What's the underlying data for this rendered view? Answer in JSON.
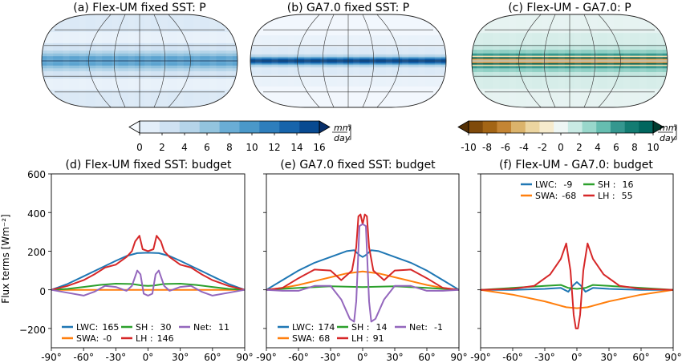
{
  "maps": [
    {
      "title": "(a) Flex-UM fixed SST: P",
      "kind": "flex"
    },
    {
      "title": "(b) GA7.0 fixed SST: P",
      "kind": "ga7"
    },
    {
      "title": "(c) Flex-UM - GA7.0: P",
      "kind": "diff"
    }
  ],
  "colorbars": [
    {
      "ticks": [
        "0",
        "2",
        "4",
        "6",
        "8",
        "10",
        "12",
        "14",
        "16"
      ],
      "unit_top": "mm",
      "unit_bottom": "day",
      "colors": [
        "#f7fbff",
        "#e3eef9",
        "#cfe1f2",
        "#b5d4e9",
        "#93c4de",
        "#6aadd5",
        "#4a98c9",
        "#2e7ebc",
        "#1764ab",
        "#084a91",
        "#08306b"
      ]
    },
    {
      "ticks": [
        "-10",
        "-8",
        "-6",
        "-4",
        "-2",
        "0",
        "2",
        "4",
        "6",
        "8",
        "10"
      ],
      "unit_top": "mm",
      "unit_bottom": "day",
      "colors": [
        "#543005",
        "#7f4a0b",
        "#a36515",
        "#c48534",
        "#dbb36b",
        "#ecd5a0",
        "#f6ebcd",
        "#eef6f4",
        "#c9eae4",
        "#99d7cb",
        "#66bdb0",
        "#35978f",
        "#137c72",
        "#01665e",
        "#003c30"
      ]
    }
  ],
  "ylabel": "Flux terms [Wm⁻²]",
  "panel_titles": [
    "(d) Flex-UM fixed SST: budget",
    "(e) GA7.0 fixed SST: budget",
    "(f) Flex-UM - GA7.0: budget"
  ],
  "x_ticks": [
    "-90°",
    "-60°",
    "-30°",
    "0°",
    "30°",
    "60°",
    "90°"
  ],
  "y_ticks": [
    "600",
    "400",
    "200",
    "0",
    "−200"
  ],
  "series_colors": {
    "LWC": "#1f77b4",
    "SWA": "#ff7f0e",
    "SH": "#2ca02c",
    "LH": "#d62728",
    "Net": "#9467bd"
  },
  "legends": [
    [
      {
        "key": "LWC",
        "label": "LWC:",
        "value": "165"
      },
      {
        "key": "SH",
        "label": "SH :",
        "value": "30"
      },
      {
        "key": "Net",
        "label": "Net:",
        "value": "11"
      },
      {
        "key": "SWA",
        "label": "SWA:",
        "value": "-0"
      },
      {
        "key": "LH",
        "label": "LH :",
        "value": "146"
      }
    ],
    [
      {
        "key": "LWC",
        "label": "LWC:",
        "value": "174"
      },
      {
        "key": "SH",
        "label": "SH :",
        "value": "14"
      },
      {
        "key": "Net",
        "label": "Net:",
        "value": "-1"
      },
      {
        "key": "SWA",
        "label": "SWA:",
        "value": "68"
      },
      {
        "key": "LH",
        "label": "LH :",
        "value": "91"
      }
    ],
    [
      {
        "key": "LWC",
        "label": "LWC:",
        "value": "-9"
      },
      {
        "key": "SH",
        "label": "SH :",
        "value": "16"
      },
      {
        "key": "SWA",
        "label": "SWA:",
        "value": "-68"
      },
      {
        "key": "LH",
        "label": "LH :",
        "value": "55"
      }
    ]
  ],
  "chart_data": [
    {
      "type": "line",
      "title": "(d) Flex-UM fixed SST: budget",
      "xlabel": "",
      "ylabel": "Flux terms [Wm⁻²]",
      "xlim": [
        -90,
        90
      ],
      "ylim": [
        -300,
        600
      ],
      "series": [
        {
          "name": "LWC",
          "x": [
            -90,
            -75,
            -60,
            -45,
            -30,
            -20,
            -10,
            0,
            10,
            20,
            30,
            45,
            60,
            75,
            90
          ],
          "y": [
            0,
            30,
            70,
            110,
            150,
            175,
            190,
            192,
            190,
            175,
            150,
            110,
            70,
            30,
            0
          ]
        },
        {
          "name": "SWA",
          "x": [
            -90,
            -60,
            -30,
            0,
            30,
            60,
            90
          ],
          "y": [
            0,
            0,
            0,
            0,
            0,
            0,
            0
          ]
        },
        {
          "name": "SH",
          "x": [
            -90,
            -75,
            -60,
            -45,
            -30,
            -15,
            -5,
            0,
            5,
            15,
            30,
            45,
            60,
            75,
            90
          ],
          "y": [
            0,
            5,
            15,
            25,
            32,
            30,
            22,
            20,
            22,
            30,
            32,
            25,
            15,
            5,
            0
          ]
        },
        {
          "name": "LH",
          "x": [
            -90,
            -75,
            -60,
            -50,
            -40,
            -30,
            -20,
            -15,
            -12,
            -8,
            -5,
            0,
            5,
            8,
            12,
            15,
            20,
            30,
            40,
            50,
            60,
            75,
            90
          ],
          "y": [
            0,
            20,
            50,
            80,
            115,
            130,
            170,
            200,
            250,
            280,
            210,
            200,
            210,
            280,
            250,
            200,
            170,
            130,
            115,
            80,
            50,
            20,
            0
          ]
        },
        {
          "name": "Net",
          "x": [
            -90,
            -75,
            -60,
            -50,
            -40,
            -30,
            -20,
            -15,
            -10,
            -7,
            -4,
            0,
            4,
            7,
            10,
            15,
            20,
            30,
            40,
            50,
            60,
            75,
            90
          ],
          "y": [
            0,
            -15,
            -30,
            -10,
            20,
            15,
            -5,
            20,
            100,
            80,
            -20,
            -30,
            -20,
            80,
            100,
            20,
            -5,
            15,
            20,
            -10,
            -30,
            -15,
            0
          ]
        }
      ]
    },
    {
      "type": "line",
      "title": "(e) GA7.0 fixed SST: budget",
      "xlabel": "",
      "ylabel": "",
      "xlim": [
        -90,
        90
      ],
      "ylim": [
        -300,
        600
      ],
      "series": [
        {
          "name": "LWC",
          "x": [
            -90,
            -75,
            -60,
            -45,
            -30,
            -15,
            -8,
            -3,
            0,
            3,
            8,
            15,
            30,
            45,
            60,
            75,
            90
          ],
          "y": [
            0,
            50,
            100,
            140,
            170,
            200,
            205,
            180,
            170,
            180,
            205,
            200,
            170,
            140,
            100,
            50,
            0
          ]
        },
        {
          "name": "SWA",
          "x": [
            -90,
            -75,
            -60,
            -45,
            -30,
            -15,
            0,
            15,
            30,
            45,
            60,
            75,
            90
          ],
          "y": [
            0,
            10,
            25,
            45,
            65,
            85,
            95,
            85,
            65,
            45,
            25,
            10,
            0
          ]
        },
        {
          "name": "SH",
          "x": [
            -90,
            -60,
            -30,
            0,
            30,
            60,
            90
          ],
          "y": [
            0,
            10,
            18,
            14,
            18,
            10,
            0
          ]
        },
        {
          "name": "LH",
          "x": [
            -90,
            -75,
            -60,
            -45,
            -30,
            -20,
            -10,
            -6,
            -4,
            -2,
            0,
            2,
            4,
            6,
            10,
            20,
            30,
            45,
            60,
            75,
            90
          ],
          "y": [
            0,
            10,
            60,
            105,
            100,
            50,
            100,
            220,
            380,
            390,
            340,
            390,
            380,
            220,
            100,
            50,
            100,
            105,
            60,
            10,
            0
          ]
        },
        {
          "name": "Net",
          "x": [
            -90,
            -75,
            -60,
            -45,
            -30,
            -20,
            -12,
            -8,
            -6,
            -3,
            0,
            3,
            6,
            8,
            12,
            20,
            30,
            45,
            60,
            75,
            90
          ],
          "y": [
            0,
            -5,
            -5,
            20,
            20,
            -50,
            -150,
            -165,
            -60,
            330,
            340,
            330,
            -60,
            -165,
            -150,
            -50,
            20,
            20,
            -5,
            -5,
            0
          ]
        }
      ]
    },
    {
      "type": "line",
      "title": "(f) Flex-UM - GA7.0: budget",
      "xlabel": "",
      "ylabel": "",
      "xlim": [
        -90,
        90
      ],
      "ylim": [
        -300,
        600
      ],
      "series": [
        {
          "name": "LWC",
          "x": [
            -90,
            -60,
            -30,
            -15,
            -8,
            -4,
            0,
            4,
            8,
            15,
            30,
            60,
            90
          ],
          "y": [
            0,
            0,
            5,
            10,
            -10,
            20,
            40,
            20,
            -10,
            10,
            5,
            0,
            0
          ]
        },
        {
          "name": "SWA",
          "x": [
            -90,
            -60,
            -30,
            -10,
            0,
            10,
            30,
            60,
            90
          ],
          "y": [
            0,
            -25,
            -60,
            -90,
            -95,
            -90,
            -60,
            -25,
            0
          ]
        },
        {
          "name": "SH",
          "x": [
            -90,
            -60,
            -30,
            -15,
            -8,
            0,
            8,
            15,
            30,
            60,
            90
          ],
          "y": [
            0,
            10,
            20,
            25,
            10,
            5,
            10,
            25,
            20,
            10,
            0
          ]
        },
        {
          "name": "LH",
          "x": [
            -90,
            -60,
            -40,
            -25,
            -15,
            -10,
            -6,
            -3,
            -1,
            0,
            1,
            3,
            6,
            10,
            15,
            25,
            40,
            60,
            90
          ],
          "y": [
            0,
            5,
            20,
            80,
            160,
            240,
            100,
            -130,
            -200,
            -200,
            -200,
            -130,
            100,
            240,
            160,
            80,
            20,
            5,
            0
          ]
        }
      ]
    }
  ]
}
